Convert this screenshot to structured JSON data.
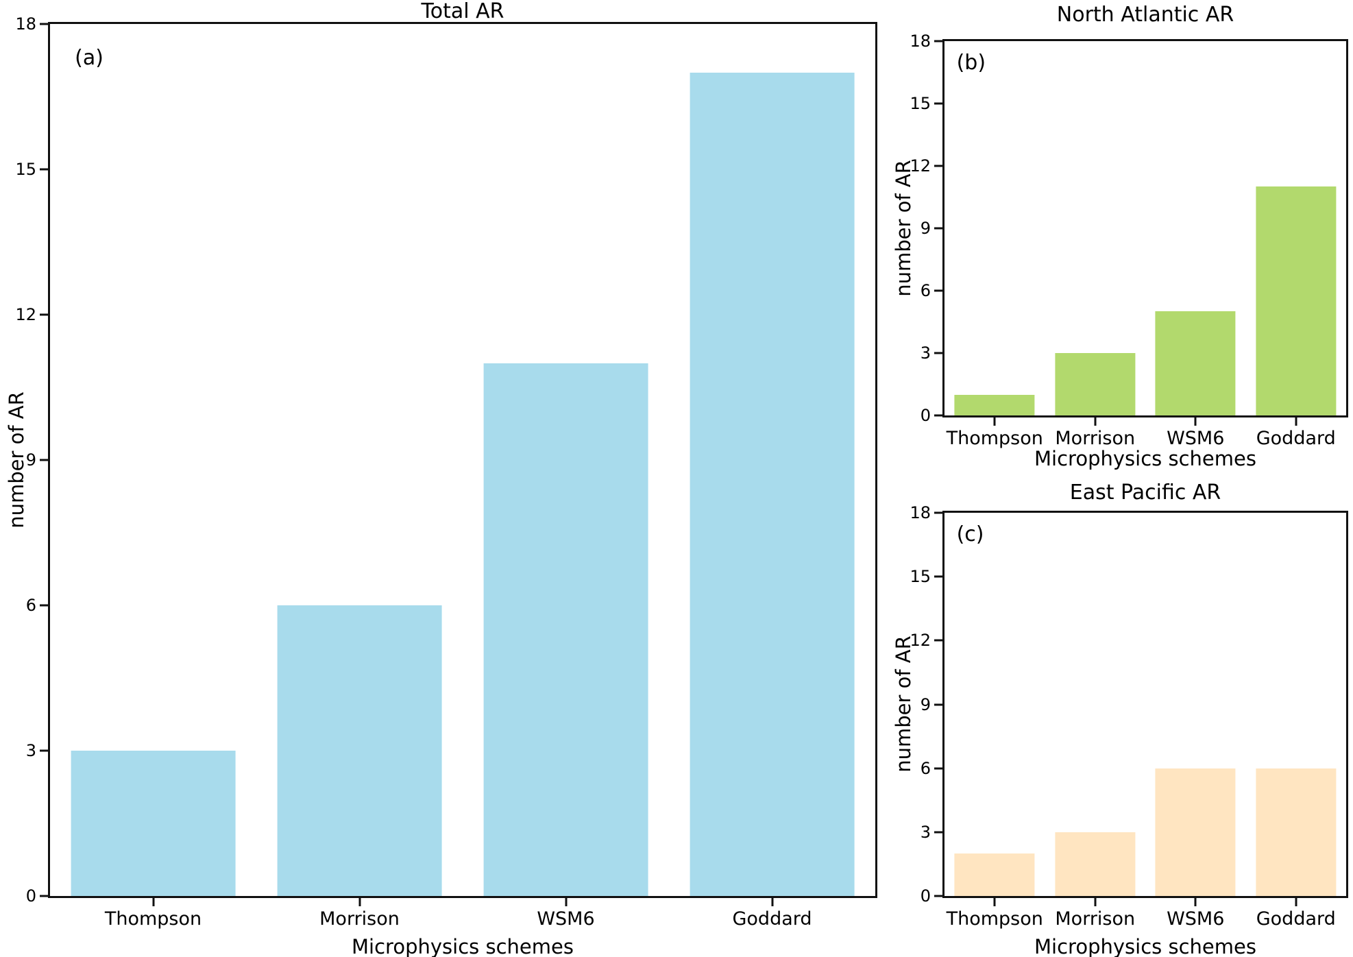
{
  "figure": {
    "background": "#ffffff",
    "axis_color": "#111111",
    "text_color": "#000000"
  },
  "chart_data": [
    {
      "type": "bar",
      "panel": "a",
      "annotation": "(a)",
      "title": "Total AR",
      "xlabel": "Microphysics schemes",
      "ylabel": "number of AR",
      "categories": [
        "Thompson",
        "Morrison",
        "WSM6",
        "Goddard"
      ],
      "values": [
        3,
        6,
        11,
        17
      ],
      "ylim": [
        0,
        18
      ],
      "yticks": [
        0,
        3,
        6,
        9,
        12,
        15,
        18
      ],
      "bar_color": "#A8DBEC",
      "bar_width_fraction": 0.8,
      "grid": false,
      "legend": "none"
    },
    {
      "type": "bar",
      "panel": "b",
      "annotation": "(b)",
      "title": "North Atlantic AR",
      "xlabel": "Microphysics schemes",
      "ylabel": "number of AR",
      "categories": [
        "Thompson",
        "Morrison",
        "WSM6",
        "Goddard"
      ],
      "values": [
        1,
        3,
        5,
        11
      ],
      "ylim": [
        0,
        18
      ],
      "yticks": [
        0,
        3,
        6,
        9,
        12,
        15,
        18
      ],
      "bar_color": "#B2D96D",
      "bar_width_fraction": 0.8,
      "grid": false,
      "legend": "none"
    },
    {
      "type": "bar",
      "panel": "c",
      "annotation": "(c)",
      "title": "East Pacific AR",
      "xlabel": "Microphysics schemes",
      "ylabel": "number of AR",
      "categories": [
        "Thompson",
        "Morrison",
        "WSM6",
        "Goddard"
      ],
      "values": [
        2,
        3,
        6,
        6
      ],
      "ylim": [
        0,
        18
      ],
      "yticks": [
        0,
        3,
        6,
        9,
        12,
        15,
        18
      ],
      "bar_color": "#FFE5C1",
      "bar_width_fraction": 0.8,
      "grid": false,
      "legend": "none"
    }
  ]
}
